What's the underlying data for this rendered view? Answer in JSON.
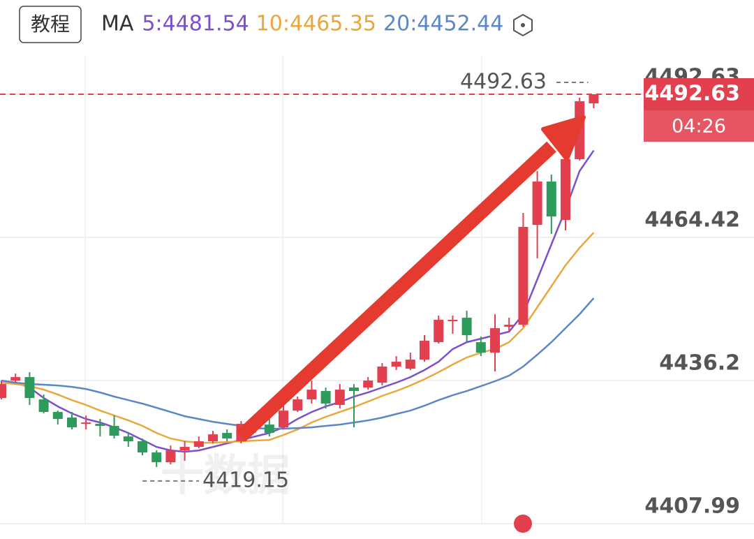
{
  "chart_data": {
    "type": "candlestick",
    "button": "教程",
    "legend_title": "MA",
    "categories": [
      null,
      null,
      null,
      null,
      null,
      null,
      null,
      null,
      null,
      null,
      null,
      null,
      null,
      null,
      null,
      null,
      null,
      null,
      null,
      null,
      null,
      null,
      null,
      null,
      null,
      null,
      null,
      null,
      null,
      null,
      null,
      null,
      null,
      null,
      null,
      null,
      null,
      null,
      null,
      null,
      null,
      null,
      null
    ],
    "open": [
      4432.75,
      4436.19,
      4436.88,
      4432.48,
      4430.0,
      4428.9,
      4427.66,
      4427.66,
      4427.25,
      4425.18,
      4424.22,
      4422.02,
      4420.09,
      4422.43,
      4423.12,
      4424.22,
      4425.87,
      4424.22,
      4428.35,
      4427.52,
      4426.97,
      4430.27,
      4432.48,
      4434.13,
      4431.38,
      4434.82,
      4434.82,
      4435.78,
      4438.95,
      4438.53,
      4440.32,
      4443.76,
      4447.89,
      4448.58,
      4443.76,
      4441.7,
      4446.79,
      4447.2,
      4466.89,
      4475.42,
      4467.85,
      4479.83,
      4490.84
    ],
    "high": [
      4436.19,
      4437.57,
      4437.84,
      4433.44,
      4430.27,
      4430.0,
      4429.31,
      4428.62,
      4429.31,
      4425.87,
      4424.77,
      4422.43,
      4423.39,
      4424.22,
      4425.18,
      4426.28,
      4426.56,
      4428.21,
      4428.62,
      4428.62,
      4431.38,
      4433.03,
      4436.19,
      4434.82,
      4435.51,
      4435.51,
      4436.88,
      4439.63,
      4441.01,
      4441.7,
      4445.14,
      4448.99,
      4448.99,
      4449.96,
      4444.87,
      4449.27,
      4448.58,
      4469.23,
      4477.49,
      4476.8,
      4480.65,
      4491.94,
      4492.63
    ],
    "low": [
      4432.48,
      4435.78,
      4431.38,
      4429.72,
      4427.52,
      4426.56,
      4426.56,
      4425.18,
      4424.77,
      4423.12,
      4421.46,
      4419.15,
      4419.67,
      4420.36,
      4422.84,
      4423.81,
      4424.22,
      4423.81,
      4425.87,
      4425.18,
      4426.56,
      4430.0,
      4431.65,
      4430.69,
      4430.69,
      4426.97,
      4434.4,
      4435.23,
      4438.26,
      4438.26,
      4439.91,
      4443.49,
      4445.42,
      4443.76,
      4441.01,
      4437.98,
      4445.83,
      4446.79,
      4460.28,
      4465.1,
      4465.79,
      4479.55,
      4489.88
    ],
    "close": [
      4435.51,
      4436.88,
      4432.75,
      4430.0,
      4428.62,
      4426.97,
      4427.93,
      4427.25,
      4425.32,
      4424.22,
      4422.02,
      4420.09,
      4422.43,
      4423.12,
      4424.22,
      4425.59,
      4424.77,
      4427.66,
      4426.97,
      4425.87,
      4430.27,
      4432.48,
      4434.4,
      4431.65,
      4434.4,
      4434.13,
      4436.19,
      4438.95,
      4439.91,
      4440.32,
      4444.04,
      4448.17,
      4448.17,
      4445.14,
      4441.7,
      4446.52,
      4447.2,
      4466.48,
      4475.42,
      4468.54,
      4479.83,
      4491.25,
      4492.63
    ],
    "up_color": "#e2404f",
    "down_color": "#2e9b5c",
    "series": [
      {
        "name": "5:4481.54",
        "color": "#7c4fcf",
        "values": [
          4436.19,
          4435.78,
          4434.82,
          4432.75,
          4431.1,
          4429.72,
          4428.62,
          4427.93,
          4426.97,
          4425.87,
          4424.49,
          4423.12,
          4422.43,
          4422.15,
          4422.43,
          4423.12,
          4423.81,
          4424.49,
          4425.18,
          4425.87,
          4426.97,
          4428.62,
          4430.0,
          4431.1,
          4431.93,
          4433.03,
          4433.85,
          4434.82,
          4435.78,
          4436.88,
          4438.26,
          4439.91,
          4442.39,
          4443.76,
          4444.45,
          4445.14,
          4445.83,
          4449.27,
          4456.15,
          4463.04,
          4469.92,
          4477.49,
          4481.54
        ]
      },
      {
        "name": "10:4465.35",
        "color": "#eba63c",
        "values": [
          4435.78,
          4435.51,
          4435.09,
          4434.4,
          4433.44,
          4432.34,
          4431.38,
          4430.27,
          4429.31,
          4428.35,
          4427.25,
          4425.87,
          4424.77,
          4424.22,
          4423.94,
          4423.94,
          4424.08,
          4424.22,
          4424.36,
          4424.49,
          4425.46,
          4426.56,
          4427.93,
          4429.04,
          4430.0,
          4430.96,
          4432.06,
          4433.17,
          4434.13,
          4435.23,
          4436.47,
          4437.84,
          4439.36,
          4440.74,
          4441.7,
          4442.39,
          4443.76,
          4446.52,
          4450.65,
          4454.78,
          4458.91,
          4462.35,
          4465.35
        ]
      },
      {
        "name": "20:4452.44",
        "color": "#5b87c6",
        "values": [
          4436.19,
          4435.78,
          4435.51,
          4435.37,
          4435.23,
          4434.95,
          4434.54,
          4433.85,
          4433.03,
          4432.34,
          4431.65,
          4430.83,
          4430.0,
          4429.17,
          4428.62,
          4428.07,
          4427.66,
          4427.25,
          4426.83,
          4426.7,
          4426.7,
          4426.83,
          4426.97,
          4427.25,
          4427.52,
          4427.93,
          4428.35,
          4428.9,
          4429.59,
          4430.27,
          4431.24,
          4432.34,
          4433.3,
          4434.13,
          4435.09,
          4436.06,
          4437.16,
          4438.95,
          4441.29,
          4443.76,
          4446.52,
          4449.27,
          4452.44
        ]
      }
    ],
    "ylim": [
      4404.96,
      4511.21
    ],
    "yticks": [
      4492.63,
      4464.42,
      4436.2,
      4407.99
    ],
    "grid": true,
    "last_price": 4492.63,
    "countdown": "04:26",
    "high_label": "4492.63",
    "low_label": "4419.15",
    "watermark": "十数据"
  }
}
